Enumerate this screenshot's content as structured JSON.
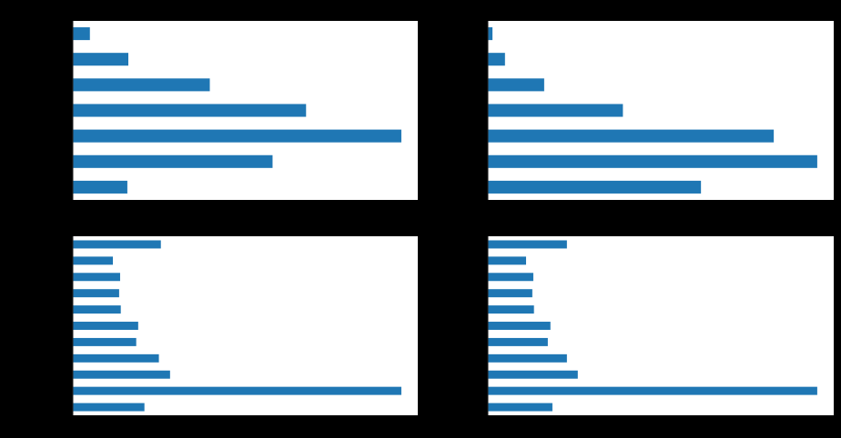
{
  "chart_data": [
    {
      "type": "bar",
      "orientation": "horizontal",
      "values": [
        5.2,
        16.9,
        41.7,
        71.0,
        100,
        60.8,
        16.6
      ],
      "xlim": [
        0,
        105
      ],
      "grid": false,
      "color": "#1f77b4"
    },
    {
      "type": "bar",
      "orientation": "horizontal",
      "values": [
        1.4,
        5.2,
        17.1,
        41.0,
        86.8,
        100,
        64.7
      ],
      "xlim": [
        0,
        105
      ],
      "grid": false,
      "color": "#1f77b4"
    },
    {
      "type": "bar",
      "orientation": "horizontal",
      "values": [
        26.8,
        12.2,
        14.4,
        14.1,
        14.6,
        19.9,
        19.3,
        26.2,
        29.6,
        100,
        21.8
      ],
      "xlim": [
        0,
        105
      ],
      "grid": false,
      "color": "#1f77b4"
    },
    {
      "type": "bar",
      "orientation": "horizontal",
      "values": [
        24.0,
        11.6,
        13.8,
        13.5,
        14.0,
        19.0,
        18.2,
        24.0,
        27.3,
        100,
        19.6
      ],
      "xlim": [
        0,
        105
      ],
      "grid": false,
      "color": "#1f77b4"
    }
  ],
  "note_values_order": "top-to-bottom",
  "background": "#000000"
}
